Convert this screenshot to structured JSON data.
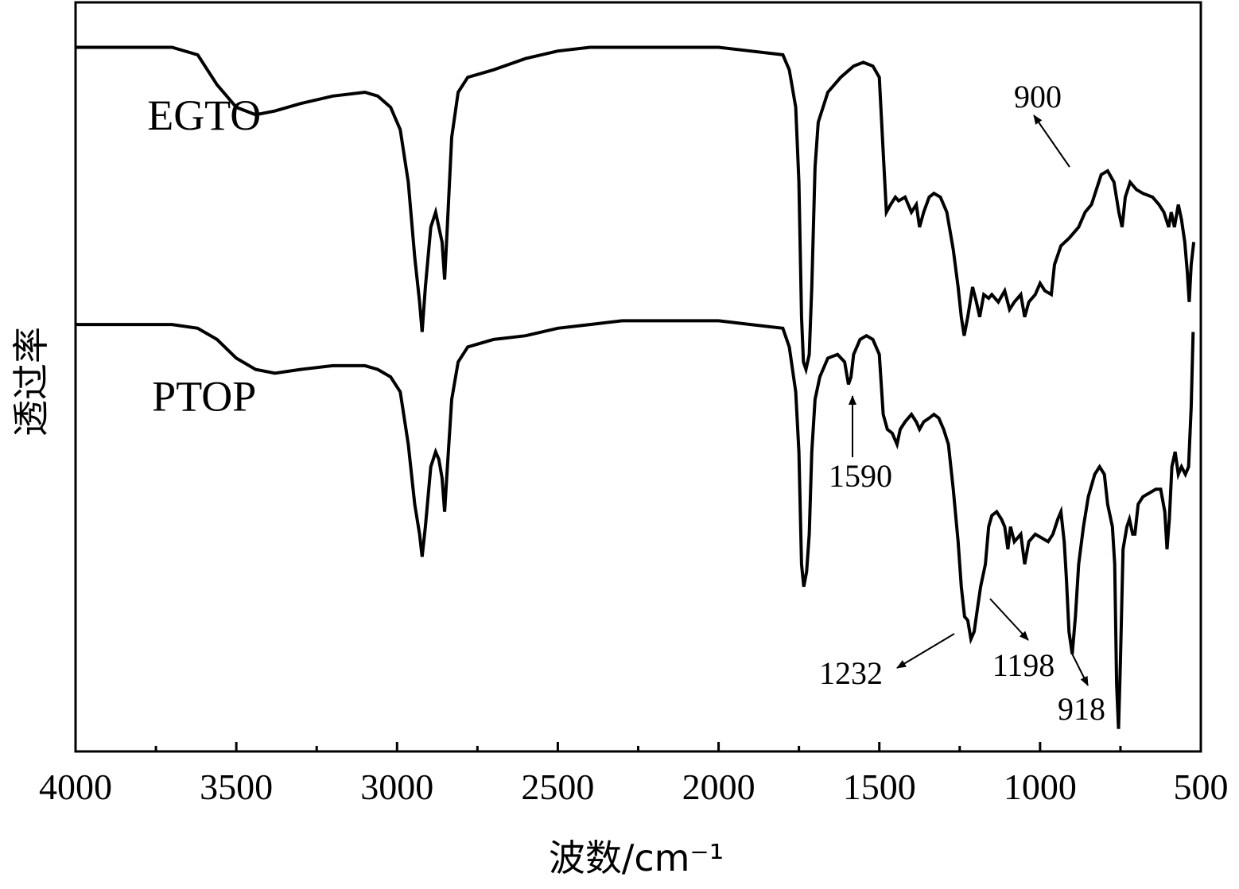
{
  "chart_data": {
    "type": "line",
    "xlabel": "波数/cm⁻¹",
    "ylabel": "透过率",
    "xlim": [
      4000,
      500
    ],
    "x_reversed": true,
    "xticks": [
      4000,
      3500,
      3000,
      2500,
      2000,
      1500,
      1000,
      500
    ],
    "y_ticks_shown": false,
    "grid": false,
    "legend": "none",
    "series": [
      {
        "name": "EGTO",
        "points": [
          [
            4000,
            0.94
          ],
          [
            3700,
            0.94
          ],
          [
            3620,
            0.93
          ],
          [
            3560,
            0.89
          ],
          [
            3500,
            0.86
          ],
          [
            3440,
            0.85
          ],
          [
            3380,
            0.855
          ],
          [
            3300,
            0.865
          ],
          [
            3200,
            0.875
          ],
          [
            3100,
            0.88
          ],
          [
            3060,
            0.875
          ],
          [
            3020,
            0.86
          ],
          [
            2990,
            0.83
          ],
          [
            2965,
            0.76
          ],
          [
            2945,
            0.66
          ],
          [
            2930,
            0.6
          ],
          [
            2922,
            0.56
          ],
          [
            2912,
            0.62
          ],
          [
            2895,
            0.7
          ],
          [
            2880,
            0.72
          ],
          [
            2870,
            0.7
          ],
          [
            2860,
            0.68
          ],
          [
            2852,
            0.63
          ],
          [
            2845,
            0.69
          ],
          [
            2830,
            0.82
          ],
          [
            2810,
            0.88
          ],
          [
            2780,
            0.9
          ],
          [
            2700,
            0.91
          ],
          [
            2600,
            0.925
          ],
          [
            2500,
            0.935
          ],
          [
            2400,
            0.94
          ],
          [
            2300,
            0.94
          ],
          [
            2200,
            0.94
          ],
          [
            2100,
            0.94
          ],
          [
            2000,
            0.94
          ],
          [
            1900,
            0.935
          ],
          [
            1800,
            0.93
          ],
          [
            1780,
            0.91
          ],
          [
            1760,
            0.86
          ],
          [
            1750,
            0.76
          ],
          [
            1742,
            0.58
          ],
          [
            1736,
            0.52
          ],
          [
            1728,
            0.51
          ],
          [
            1718,
            0.53
          ],
          [
            1710,
            0.62
          ],
          [
            1700,
            0.78
          ],
          [
            1690,
            0.84
          ],
          [
            1660,
            0.88
          ],
          [
            1620,
            0.9
          ],
          [
            1580,
            0.915
          ],
          [
            1550,
            0.92
          ],
          [
            1520,
            0.915
          ],
          [
            1500,
            0.9
          ],
          [
            1488,
            0.8
          ],
          [
            1478,
            0.72
          ],
          [
            1465,
            0.73
          ],
          [
            1450,
            0.74
          ],
          [
            1440,
            0.735
          ],
          [
            1420,
            0.74
          ],
          [
            1400,
            0.72
          ],
          [
            1385,
            0.73
          ],
          [
            1375,
            0.7
          ],
          [
            1362,
            0.72
          ],
          [
            1345,
            0.74
          ],
          [
            1330,
            0.745
          ],
          [
            1310,
            0.74
          ],
          [
            1290,
            0.72
          ],
          [
            1270,
            0.67
          ],
          [
            1255,
            0.62
          ],
          [
            1245,
            0.58
          ],
          [
            1236,
            0.555
          ],
          [
            1225,
            0.58
          ],
          [
            1210,
            0.62
          ],
          [
            1198,
            0.6
          ],
          [
            1188,
            0.58
          ],
          [
            1175,
            0.61
          ],
          [
            1160,
            0.605
          ],
          [
            1150,
            0.61
          ],
          [
            1130,
            0.6
          ],
          [
            1110,
            0.615
          ],
          [
            1095,
            0.59
          ],
          [
            1080,
            0.6
          ],
          [
            1060,
            0.61
          ],
          [
            1048,
            0.58
          ],
          [
            1035,
            0.6
          ],
          [
            1015,
            0.61
          ],
          [
            1000,
            0.625
          ],
          [
            985,
            0.615
          ],
          [
            965,
            0.61
          ],
          [
            955,
            0.65
          ],
          [
            935,
            0.675
          ],
          [
            910,
            0.685
          ],
          [
            900,
            0.69
          ],
          [
            880,
            0.7
          ],
          [
            860,
            0.72
          ],
          [
            840,
            0.73
          ],
          [
            825,
            0.75
          ],
          [
            810,
            0.77
          ],
          [
            790,
            0.775
          ],
          [
            770,
            0.76
          ],
          [
            755,
            0.72
          ],
          [
            745,
            0.7
          ],
          [
            735,
            0.74
          ],
          [
            720,
            0.76
          ],
          [
            700,
            0.75
          ],
          [
            680,
            0.745
          ],
          [
            650,
            0.74
          ],
          [
            630,
            0.73
          ],
          [
            615,
            0.72
          ],
          [
            600,
            0.7
          ],
          [
            592,
            0.72
          ],
          [
            582,
            0.7
          ],
          [
            570,
            0.73
          ],
          [
            560,
            0.71
          ],
          [
            550,
            0.68
          ],
          [
            542,
            0.64
          ],
          [
            536,
            0.6
          ],
          [
            530,
            0.65
          ],
          [
            522,
            0.68
          ]
        ]
      },
      {
        "name": "PTOP",
        "points": [
          [
            4000,
            0.57
          ],
          [
            3700,
            0.57
          ],
          [
            3620,
            0.565
          ],
          [
            3560,
            0.55
          ],
          [
            3500,
            0.525
          ],
          [
            3440,
            0.51
          ],
          [
            3380,
            0.505
          ],
          [
            3300,
            0.51
          ],
          [
            3200,
            0.515
          ],
          [
            3100,
            0.515
          ],
          [
            3060,
            0.51
          ],
          [
            3020,
            0.5
          ],
          [
            2990,
            0.48
          ],
          [
            2965,
            0.41
          ],
          [
            2945,
            0.33
          ],
          [
            2930,
            0.29
          ],
          [
            2922,
            0.26
          ],
          [
            2912,
            0.3
          ],
          [
            2895,
            0.38
          ],
          [
            2880,
            0.4
          ],
          [
            2870,
            0.39
          ],
          [
            2860,
            0.365
          ],
          [
            2852,
            0.32
          ],
          [
            2845,
            0.37
          ],
          [
            2830,
            0.47
          ],
          [
            2810,
            0.52
          ],
          [
            2780,
            0.54
          ],
          [
            2700,
            0.55
          ],
          [
            2600,
            0.555
          ],
          [
            2500,
            0.565
          ],
          [
            2400,
            0.57
          ],
          [
            2300,
            0.575
          ],
          [
            2200,
            0.575
          ],
          [
            2100,
            0.575
          ],
          [
            2000,
            0.575
          ],
          [
            1900,
            0.57
          ],
          [
            1800,
            0.565
          ],
          [
            1780,
            0.54
          ],
          [
            1760,
            0.48
          ],
          [
            1750,
            0.4
          ],
          [
            1742,
            0.25
          ],
          [
            1735,
            0.22
          ],
          [
            1726,
            0.24
          ],
          [
            1718,
            0.29
          ],
          [
            1710,
            0.4
          ],
          [
            1700,
            0.47
          ],
          [
            1685,
            0.5
          ],
          [
            1660,
            0.525
          ],
          [
            1630,
            0.53
          ],
          [
            1608,
            0.52
          ],
          [
            1596,
            0.49
          ],
          [
            1588,
            0.5
          ],
          [
            1580,
            0.53
          ],
          [
            1560,
            0.55
          ],
          [
            1540,
            0.555
          ],
          [
            1520,
            0.55
          ],
          [
            1500,
            0.53
          ],
          [
            1488,
            0.45
          ],
          [
            1475,
            0.43
          ],
          [
            1460,
            0.425
          ],
          [
            1445,
            0.41
          ],
          [
            1435,
            0.43
          ],
          [
            1420,
            0.44
          ],
          [
            1400,
            0.45
          ],
          [
            1385,
            0.44
          ],
          [
            1375,
            0.43
          ],
          [
            1362,
            0.44
          ],
          [
            1345,
            0.445
          ],
          [
            1330,
            0.45
          ],
          [
            1315,
            0.445
          ],
          [
            1300,
            0.43
          ],
          [
            1285,
            0.41
          ],
          [
            1270,
            0.35
          ],
          [
            1255,
            0.28
          ],
          [
            1245,
            0.22
          ],
          [
            1235,
            0.18
          ],
          [
            1225,
            0.175
          ],
          [
            1215,
            0.15
          ],
          [
            1205,
            0.16
          ],
          [
            1195,
            0.19
          ],
          [
            1185,
            0.22
          ],
          [
            1170,
            0.25
          ],
          [
            1160,
            0.3
          ],
          [
            1150,
            0.315
          ],
          [
            1135,
            0.32
          ],
          [
            1120,
            0.31
          ],
          [
            1110,
            0.3
          ],
          [
            1100,
            0.27
          ],
          [
            1092,
            0.3
          ],
          [
            1080,
            0.28
          ],
          [
            1060,
            0.29
          ],
          [
            1048,
            0.25
          ],
          [
            1035,
            0.28
          ],
          [
            1015,
            0.29
          ],
          [
            995,
            0.285
          ],
          [
            975,
            0.28
          ],
          [
            960,
            0.29
          ],
          [
            945,
            0.31
          ],
          [
            935,
            0.32
          ],
          [
            925,
            0.28
          ],
          [
            918,
            0.23
          ],
          [
            910,
            0.16
          ],
          [
            900,
            0.13
          ],
          [
            890,
            0.18
          ],
          [
            880,
            0.25
          ],
          [
            865,
            0.3
          ],
          [
            850,
            0.34
          ],
          [
            830,
            0.37
          ],
          [
            815,
            0.38
          ],
          [
            800,
            0.37
          ],
          [
            790,
            0.33
          ],
          [
            775,
            0.3
          ],
          [
            768,
            0.25
          ],
          [
            762,
            0.09
          ],
          [
            756,
            0.03
          ],
          [
            750,
            0.12
          ],
          [
            742,
            0.27
          ],
          [
            730,
            0.3
          ],
          [
            722,
            0.31
          ],
          [
            712,
            0.29
          ],
          [
            705,
            0.29
          ],
          [
            695,
            0.33
          ],
          [
            680,
            0.34
          ],
          [
            660,
            0.345
          ],
          [
            640,
            0.35
          ],
          [
            625,
            0.35
          ],
          [
            612,
            0.32
          ],
          [
            605,
            0.27
          ],
          [
            598,
            0.31
          ],
          [
            590,
            0.38
          ],
          [
            580,
            0.4
          ],
          [
            570,
            0.37
          ],
          [
            560,
            0.38
          ],
          [
            548,
            0.37
          ],
          [
            538,
            0.38
          ],
          [
            530,
            0.46
          ],
          [
            524,
            0.56
          ]
        ]
      }
    ],
    "annotations": [
      {
        "label": "900",
        "series": "EGTO",
        "x": 900
      },
      {
        "label": "1590",
        "series": "PTOP",
        "x": 1590
      },
      {
        "label": "1232",
        "series": "PTOP",
        "x": 1232
      },
      {
        "label": "1198",
        "series": "PTOP",
        "x": 1198
      },
      {
        "label": "918",
        "series": "PTOP",
        "x": 918
      }
    ]
  }
}
